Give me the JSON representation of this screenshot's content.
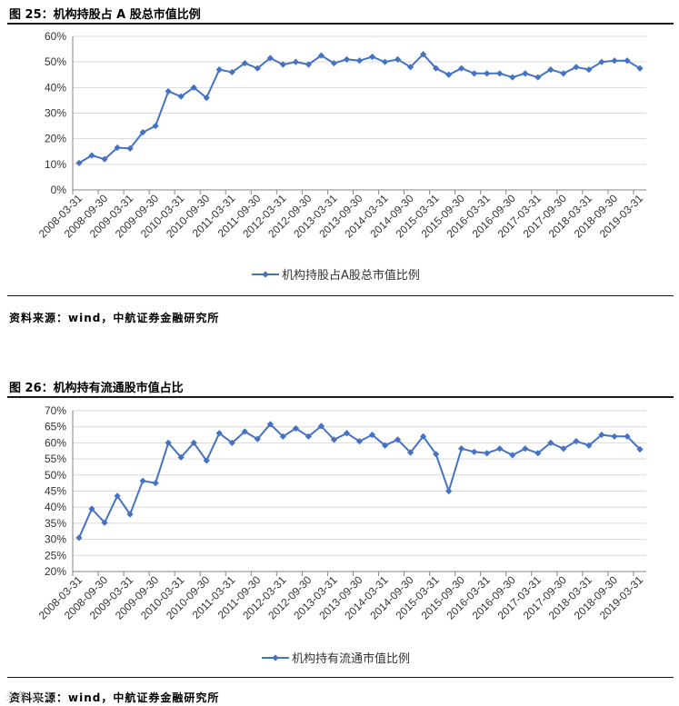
{
  "figures": [
    {
      "title": "图 25：机构持股占 A 股总市值比例",
      "source": "资料来源：wind，中航证券金融研究所"
    },
    {
      "title": "图 26：机构持有流通股市值占比",
      "source": "资料来源：wind，中航证券金融研究所"
    }
  ],
  "watermark": "头条 @ 1.",
  "colors": {
    "series": "#4472C4",
    "grid": "#d9d9d9",
    "axis": "#868686",
    "rule": "#1a1a1a"
  },
  "chart_data": [
    {
      "type": "line",
      "title": "",
      "xlabel": "",
      "ylabel": "",
      "ylim": [
        0,
        60
      ],
      "yticks": [
        "0%",
        "10%",
        "20%",
        "30%",
        "40%",
        "50%",
        "60%"
      ],
      "grid": true,
      "legend": "bottom",
      "x": [
        "2008-03-31",
        "2008-06-30",
        "2008-09-30",
        "2008-12-31",
        "2009-03-31",
        "2009-06-30",
        "2009-09-30",
        "2009-12-31",
        "2010-03-31",
        "2010-06-30",
        "2010-09-30",
        "2010-12-31",
        "2011-03-31",
        "2011-06-30",
        "2011-09-30",
        "2011-12-31",
        "2012-03-31",
        "2012-06-30",
        "2012-09-30",
        "2012-12-31",
        "2013-03-31",
        "2013-06-30",
        "2013-09-30",
        "2013-12-31",
        "2014-03-31",
        "2014-06-30",
        "2014-09-30",
        "2014-12-31",
        "2015-03-31",
        "2015-06-30",
        "2015-09-30",
        "2015-12-31",
        "2016-03-31",
        "2016-06-30",
        "2016-09-30",
        "2016-12-31",
        "2017-03-31",
        "2017-06-30",
        "2017-09-30",
        "2017-12-31",
        "2018-03-31",
        "2018-06-30",
        "2018-09-30",
        "2018-12-31",
        "2019-03-31"
      ],
      "xticklabels": [
        "2008-03-31",
        "2008-09-30",
        "2009-03-31",
        "2009-09-30",
        "2010-03-31",
        "2010-09-30",
        "2011-03-31",
        "2011-09-30",
        "2012-03-31",
        "2012-09-30",
        "2013-03-31",
        "2013-09-30",
        "2014-03-31",
        "2014-09-30",
        "2015-03-31",
        "2015-09-30",
        "2016-03-31",
        "2016-09-30",
        "2017-03-31",
        "2017-09-30",
        "2018-03-31",
        "2018-09-30",
        "2019-03-31"
      ],
      "series": [
        {
          "name": "机构持股占A股总市值比例",
          "values": [
            10.5,
            13.5,
            12,
            16.5,
            16.2,
            22.5,
            25,
            38.5,
            36.5,
            40,
            36,
            47,
            46,
            49.5,
            47.5,
            51.5,
            49,
            50,
            49,
            52.5,
            49.5,
            51,
            50.5,
            52,
            50,
            51,
            48,
            53,
            47.5,
            45,
            47.5,
            45.5,
            45.5,
            45.5,
            44,
            45.5,
            44,
            47,
            45.5,
            48,
            47,
            50,
            50.5,
            50.5,
            47.5
          ]
        }
      ]
    },
    {
      "type": "line",
      "title": "",
      "xlabel": "",
      "ylabel": "",
      "ylim": [
        20,
        70
      ],
      "yticks": [
        "20%",
        "25%",
        "30%",
        "35%",
        "40%",
        "45%",
        "50%",
        "55%",
        "60%",
        "65%",
        "70%"
      ],
      "grid": true,
      "legend": "bottom",
      "x": [
        "2008-03-31",
        "2008-06-30",
        "2008-09-30",
        "2008-12-31",
        "2009-03-31",
        "2009-06-30",
        "2009-09-30",
        "2009-12-31",
        "2010-03-31",
        "2010-06-30",
        "2010-09-30",
        "2010-12-31",
        "2011-03-31",
        "2011-06-30",
        "2011-09-30",
        "2011-12-31",
        "2012-03-31",
        "2012-06-30",
        "2012-09-30",
        "2012-12-31",
        "2013-03-31",
        "2013-06-30",
        "2013-09-30",
        "2013-12-31",
        "2014-03-31",
        "2014-06-30",
        "2014-09-30",
        "2014-12-31",
        "2015-03-31",
        "2015-06-30",
        "2015-09-30",
        "2015-12-31",
        "2016-03-31",
        "2016-06-30",
        "2016-09-30",
        "2016-12-31",
        "2017-03-31",
        "2017-06-30",
        "2017-09-30",
        "2017-12-31",
        "2018-03-31",
        "2018-06-30",
        "2018-09-30",
        "2018-12-31",
        "2019-03-31"
      ],
      "xticklabels": [
        "2008-03-31",
        "2008-09-30",
        "2009-03-31",
        "2009-09-30",
        "2010-03-31",
        "2010-09-30",
        "2011-03-31",
        "2011-09-30",
        "2012-03-31",
        "2012-09-30",
        "2013-03-31",
        "2013-09-30",
        "2014-03-31",
        "2014-09-30",
        "2015-03-31",
        "2015-09-30",
        "2016-03-31",
        "2016-09-30",
        "2017-03-31",
        "2017-09-30",
        "2018-03-31",
        "2018-09-30",
        "2019-03-31"
      ],
      "series": [
        {
          "name": "机构持有流通市值比例",
          "values": [
            30.5,
            39.5,
            35.2,
            43.5,
            37.8,
            48.2,
            47.5,
            60,
            55.5,
            60,
            54.5,
            63,
            60,
            63.5,
            61.2,
            65.8,
            62,
            64.5,
            62,
            65.2,
            61,
            63,
            60.5,
            62.5,
            59.2,
            61,
            57,
            62,
            56.5,
            45,
            58.2,
            57.2,
            56.8,
            58.2,
            56.2,
            58.2,
            56.8,
            60,
            58.2,
            60.5,
            59.2,
            62.5,
            62,
            62,
            58
          ]
        }
      ]
    }
  ]
}
